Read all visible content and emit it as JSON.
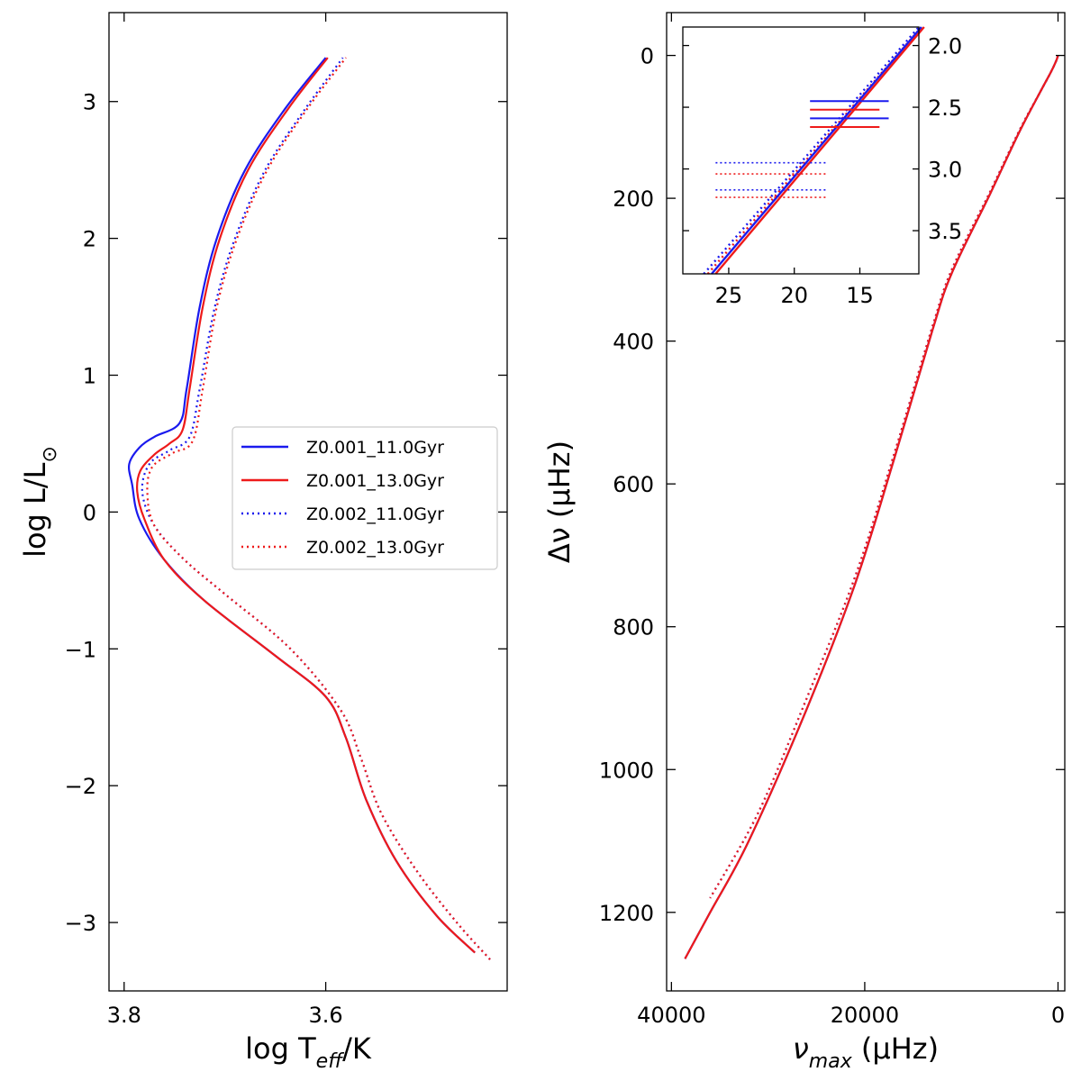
{
  "colors": {
    "blue": "#1a1aee",
    "red": "#ee1a1a",
    "axis": "#000000",
    "background": "#ffffff"
  },
  "chart_data": [
    {
      "id": "hr",
      "type": "line",
      "title": "",
      "xlabel_main": "log T",
      "xlabel_sub": "eff",
      "xlabel_tail": "/K",
      "ylabel_main": "log L/L",
      "ylabel_sub": "⊙",
      "xlim": [
        3.815,
        3.42
      ],
      "ylim": [
        -3.5,
        3.65
      ],
      "xticks": [
        3.8,
        3.6
      ],
      "xtick_labels": [
        "3.8",
        "3.6"
      ],
      "yticks": [
        -3,
        -2,
        -1,
        0,
        1,
        2,
        3
      ],
      "ytick_labels": [
        "−3",
        "−2",
        "−1",
        "0",
        "1",
        "2",
        "3"
      ],
      "legend": {
        "position": "center-right",
        "entries": [
          {
            "label": "Z0.001_11.0Gyr",
            "color": "#1a1aee",
            "style": "solid"
          },
          {
            "label": "Z0.001_13.0Gyr",
            "color": "#ee1a1a",
            "style": "solid"
          },
          {
            "label": "Z0.002_11.0Gyr",
            "color": "#1a1aee",
            "style": "dotted"
          },
          {
            "label": "Z0.002_13.0Gyr",
            "color": "#ee1a1a",
            "style": "dotted"
          }
        ]
      },
      "series": [
        {
          "name": "Z0.002_11.0Gyr",
          "color": "#1a1aee",
          "style": "dotted",
          "points": [
            [
              3.437,
              -3.27
            ],
            [
              3.47,
              -3.0
            ],
            [
              3.51,
              -2.62
            ],
            [
              3.545,
              -2.2
            ],
            [
              3.565,
              -1.8
            ],
            [
              3.585,
              -1.45
            ],
            [
              3.635,
              -1.0
            ],
            [
              3.7,
              -0.6
            ],
            [
              3.74,
              -0.35
            ],
            [
              3.77,
              -0.1
            ],
            [
              3.782,
              0.15
            ],
            [
              3.775,
              0.35
            ],
            [
              3.755,
              0.45
            ],
            [
              3.735,
              0.55
            ],
            [
              3.725,
              0.9
            ],
            [
              3.71,
              1.5
            ],
            [
              3.69,
              2.0
            ],
            [
              3.66,
              2.5
            ],
            [
              3.62,
              2.95
            ],
            [
              3.583,
              3.32
            ]
          ]
        },
        {
          "name": "Z0.002_13.0Gyr",
          "color": "#ee1a1a",
          "style": "dotted",
          "points": [
            [
              3.437,
              -3.27
            ],
            [
              3.47,
              -3.0
            ],
            [
              3.51,
              -2.62
            ],
            [
              3.545,
              -2.2
            ],
            [
              3.565,
              -1.8
            ],
            [
              3.585,
              -1.45
            ],
            [
              3.635,
              -1.0
            ],
            [
              3.7,
              -0.6
            ],
            [
              3.74,
              -0.35
            ],
            [
              3.77,
              -0.1
            ],
            [
              3.777,
              0.15
            ],
            [
              3.772,
              0.33
            ],
            [
              3.752,
              0.43
            ],
            [
              3.732,
              0.52
            ],
            [
              3.722,
              0.9
            ],
            [
              3.708,
              1.5
            ],
            [
              3.688,
              2.0
            ],
            [
              3.658,
              2.5
            ],
            [
              3.618,
              2.95
            ],
            [
              3.58,
              3.32
            ]
          ]
        },
        {
          "name": "Z0.001_11.0Gyr",
          "color": "#1a1aee",
          "style": "solid",
          "points": [
            [
              3.452,
              -3.22
            ],
            [
              3.49,
              -2.95
            ],
            [
              3.53,
              -2.55
            ],
            [
              3.56,
              -2.1
            ],
            [
              3.58,
              -1.65
            ],
            [
              3.6,
              -1.35
            ],
            [
              3.65,
              -1.05
            ],
            [
              3.72,
              -0.65
            ],
            [
              3.76,
              -0.35
            ],
            [
              3.785,
              -0.05
            ],
            [
              3.792,
              0.2
            ],
            [
              3.795,
              0.35
            ],
            [
              3.785,
              0.47
            ],
            [
              3.77,
              0.55
            ],
            [
              3.745,
              0.65
            ],
            [
              3.738,
              0.9
            ],
            [
              3.725,
              1.5
            ],
            [
              3.708,
              2.0
            ],
            [
              3.68,
              2.5
            ],
            [
              3.64,
              2.95
            ],
            [
              3.6,
              3.32
            ]
          ]
        },
        {
          "name": "Z0.001_13.0Gyr",
          "color": "#ee1a1a",
          "style": "solid",
          "points": [
            [
              3.452,
              -3.22
            ],
            [
              3.49,
              -2.95
            ],
            [
              3.53,
              -2.55
            ],
            [
              3.56,
              -2.1
            ],
            [
              3.58,
              -1.65
            ],
            [
              3.6,
              -1.35
            ],
            [
              3.65,
              -1.05
            ],
            [
              3.72,
              -0.65
            ],
            [
              3.76,
              -0.35
            ],
            [
              3.78,
              -0.05
            ],
            [
              3.787,
              0.15
            ],
            [
              3.784,
              0.3
            ],
            [
              3.77,
              0.42
            ],
            [
              3.755,
              0.5
            ],
            [
              3.742,
              0.6
            ],
            [
              3.735,
              0.9
            ],
            [
              3.722,
              1.5
            ],
            [
              3.705,
              2.0
            ],
            [
              3.677,
              2.5
            ],
            [
              3.637,
              2.95
            ],
            [
              3.598,
              3.32
            ]
          ]
        }
      ]
    },
    {
      "id": "astero",
      "type": "line",
      "title": "",
      "xlabel_main": "ν",
      "xlabel_sub": "max",
      "xlabel_tail": " (μHz)",
      "ylabel": "Δν (μHz)",
      "xlim": [
        40500,
        -700
      ],
      "ylim": [
        1310,
        -60
      ],
      "xticks": [
        40000,
        20000,
        0
      ],
      "xtick_labels": [
        "40000",
        "20000",
        "0"
      ],
      "yticks": [
        0,
        200,
        400,
        600,
        800,
        1000,
        1200
      ],
      "ytick_labels": [
        "0",
        "200",
        "400",
        "600",
        "800",
        "1000",
        "1200"
      ],
      "series": [
        {
          "name": "Z0.002_11.0Gyr",
          "color": "#1a1aee",
          "style": "dotted",
          "points": [
            [
              0,
              0
            ],
            [
              200,
              8
            ],
            [
              800,
              25
            ],
            [
              1800,
              50
            ],
            [
              4000,
              105
            ],
            [
              7000,
              190
            ],
            [
              11000,
              300
            ],
            [
              13000,
              380
            ],
            [
              17000,
              560
            ],
            [
              21000,
              730
            ],
            [
              26000,
              900
            ],
            [
              31000,
              1060
            ],
            [
              36000,
              1180
            ]
          ]
        },
        {
          "name": "Z0.002_13.0Gyr",
          "color": "#ee1a1a",
          "style": "dotted",
          "points": [
            [
              0,
              0
            ],
            [
              200,
              8
            ],
            [
              800,
              25
            ],
            [
              1800,
              50
            ],
            [
              4000,
              105
            ],
            [
              7000,
              190
            ],
            [
              11000,
              300
            ],
            [
              13000,
              380
            ],
            [
              17000,
              560
            ],
            [
              21000,
              730
            ],
            [
              26000,
              900
            ],
            [
              31000,
              1060
            ],
            [
              36000,
              1180
            ]
          ]
        },
        {
          "name": "Z0.001_11.0Gyr",
          "color": "#1a1aee",
          "style": "solid",
          "points": [
            [
              0,
              0
            ],
            [
              200,
              8
            ],
            [
              800,
              25
            ],
            [
              1800,
              50
            ],
            [
              4000,
              107
            ],
            [
              7000,
              193
            ],
            [
              11000,
              305
            ],
            [
              13000,
              385
            ],
            [
              17000,
              567
            ],
            [
              21000,
              740
            ],
            [
              26000,
              915
            ],
            [
              32000,
              1100
            ],
            [
              36000,
              1200
            ],
            [
              38600,
              1265
            ]
          ]
        },
        {
          "name": "Z0.001_13.0Gyr",
          "color": "#ee1a1a",
          "style": "solid",
          "points": [
            [
              0,
              0
            ],
            [
              200,
              8
            ],
            [
              800,
              25
            ],
            [
              1800,
              50
            ],
            [
              4000,
              107
            ],
            [
              7000,
              193
            ],
            [
              11000,
              305
            ],
            [
              13000,
              385
            ],
            [
              17000,
              567
            ],
            [
              21000,
              740
            ],
            [
              26000,
              915
            ],
            [
              32000,
              1100
            ],
            [
              36000,
              1200
            ],
            [
              38600,
              1265
            ]
          ]
        }
      ]
    },
    {
      "id": "inset",
      "type": "line",
      "title": "",
      "xlim": [
        28.5,
        10.5
      ],
      "ylim": [
        3.85,
        1.85
      ],
      "xticks": [
        25,
        20,
        15
      ],
      "xtick_labels": [
        "25",
        "20",
        "15"
      ],
      "yticks": [
        2.0,
        2.5,
        3.0,
        3.5
      ],
      "ytick_labels": [
        "2.0",
        "2.5",
        "3.0",
        "3.5"
      ],
      "yaxis_side": "right",
      "series": [
        {
          "name": "Z0.002_11.0Gyr",
          "color": "#1a1aee",
          "style": "dotted",
          "points": [
            [
              26.9,
              3.85
            ],
            [
              10.5,
              1.85
            ]
          ]
        },
        {
          "name": "Z0.002_13.0Gyr",
          "color": "#ee1a1a",
          "style": "dotted",
          "points": [
            [
              26.6,
              3.85
            ],
            [
              10.3,
              1.85
            ]
          ]
        },
        {
          "name": "Z0.001_11.0Gyr",
          "color": "#1a1aee",
          "style": "solid",
          "points": [
            [
              26.3,
              3.85
            ],
            [
              10.3,
              1.85
            ]
          ]
        },
        {
          "name": "Z0.001_13.0Gyr",
          "color": "#ee1a1a",
          "style": "solid",
          "points": [
            [
              26.0,
              3.85
            ],
            [
              10.1,
              1.85
            ]
          ]
        }
      ],
      "hlines": [
        {
          "y": 2.45,
          "x1": 18.8,
          "x2": 12.8,
          "color": "#1a1aee",
          "style": "solid"
        },
        {
          "y": 2.52,
          "x1": 18.8,
          "x2": 13.5,
          "color": "#ee1a1a",
          "style": "solid"
        },
        {
          "y": 2.59,
          "x1": 18.8,
          "x2": 12.8,
          "color": "#1a1aee",
          "style": "solid"
        },
        {
          "y": 2.66,
          "x1": 18.8,
          "x2": 13.5,
          "color": "#ee1a1a",
          "style": "solid"
        },
        {
          "y": 2.95,
          "x1": 26.0,
          "x2": 17.6,
          "color": "#1a1aee",
          "style": "dotted"
        },
        {
          "y": 3.04,
          "x1": 26.0,
          "x2": 17.6,
          "color": "#ee1a1a",
          "style": "dotted"
        },
        {
          "y": 3.17,
          "x1": 26.0,
          "x2": 17.6,
          "color": "#1a1aee",
          "style": "dotted"
        },
        {
          "y": 3.23,
          "x1": 26.0,
          "x2": 17.6,
          "color": "#ee1a1a",
          "style": "dotted"
        }
      ]
    }
  ]
}
